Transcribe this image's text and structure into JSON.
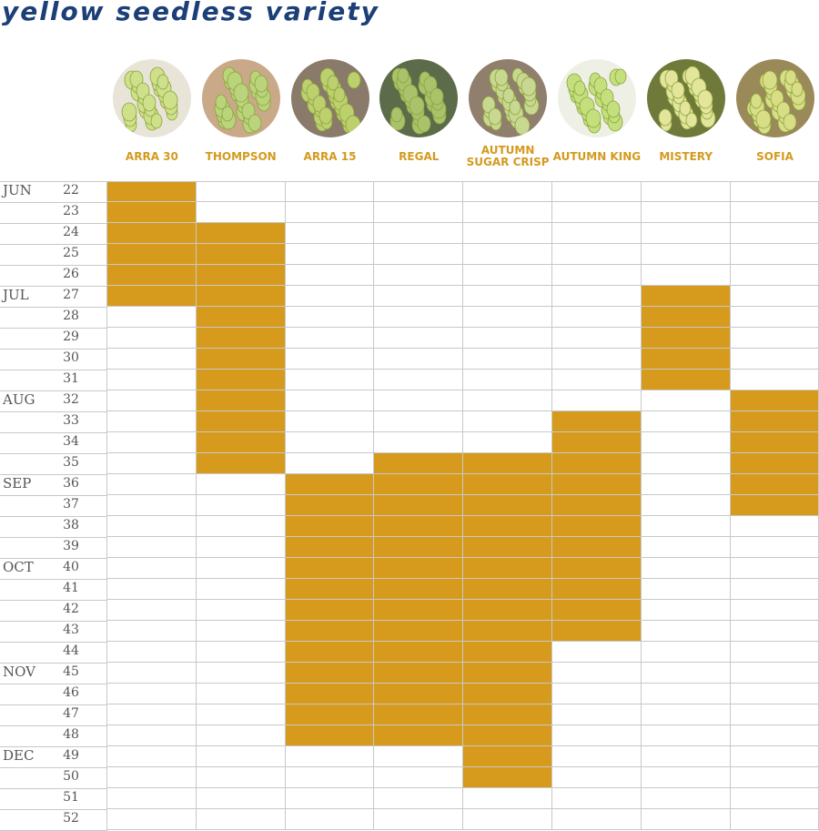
{
  "title": "yellow seedless variety",
  "chart_data": {
    "type": "table",
    "varieties": [
      {
        "name": "ARRA 30",
        "line1": "ARRA 30",
        "line2": "",
        "weeks": [
          22,
          27
        ]
      },
      {
        "name": "THOMPSON",
        "line1": "THOMPSON",
        "line2": "",
        "weeks": [
          24,
          35
        ]
      },
      {
        "name": "ARRA 15",
        "line1": "ARRA 15",
        "line2": "",
        "weeks": [
          36,
          48
        ]
      },
      {
        "name": "REGAL",
        "line1": "REGAL",
        "line2": "",
        "weeks": [
          35,
          48
        ]
      },
      {
        "name": "AUTUMN SUGAR CRISP",
        "line1": "AUTUMN",
        "line2": "SUGAR CRISP",
        "weeks": [
          35,
          50
        ]
      },
      {
        "name": "AUTUMN KING",
        "line1": "AUTUMN KING",
        "line2": "",
        "weeks": [
          33,
          43
        ]
      },
      {
        "name": "MISTERY",
        "line1": "MISTERY",
        "line2": "",
        "weeks": [
          27,
          31
        ]
      },
      {
        "name": "SOFIA",
        "line1": "SOFIA",
        "line2": "",
        "weeks": [
          32,
          37
        ]
      }
    ],
    "weeks": [
      22,
      23,
      24,
      25,
      26,
      27,
      28,
      29,
      30,
      31,
      32,
      33,
      34,
      35,
      36,
      37,
      38,
      39,
      40,
      41,
      42,
      43,
      44,
      45,
      46,
      47,
      48,
      49,
      50,
      51,
      52
    ],
    "months": [
      {
        "label": "JUN",
        "week": 22
      },
      {
        "label": "JUL",
        "week": 27
      },
      {
        "label": "AUG",
        "week": 32
      },
      {
        "label": "SEP",
        "week": 36
      },
      {
        "label": "OCT",
        "week": 40
      },
      {
        "label": "NOV",
        "week": 45
      },
      {
        "label": "DEC",
        "week": 49
      }
    ]
  },
  "colors": {
    "active": "#d69b1c",
    "label": "#d49a1e",
    "title": "#1c3f78",
    "grid": "#c8c8c8"
  }
}
